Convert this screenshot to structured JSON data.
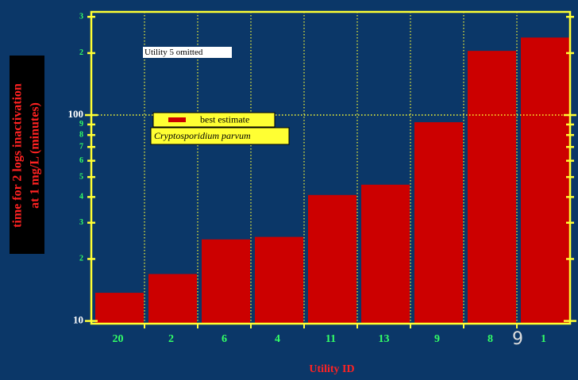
{
  "chart_data": {
    "type": "bar",
    "y_label": [
      "time for 2 logs inactivation",
      "at 1 mg/L (minutes)"
    ],
    "x_label": "Utility ID",
    "categories": [
      "20",
      "2",
      "6",
      "4",
      "11",
      "13",
      "9",
      "8",
      "1"
    ],
    "series": [
      {
        "name": "best estimate",
        "color": "#cc0000",
        "values": [
          13.7,
          16.9,
          24.9,
          25.6,
          40.9,
          45.9,
          92.3,
          205,
          238
        ]
      }
    ],
    "ylim": [
      9.7,
      317
    ],
    "log_y": true,
    "yticks": [
      10,
      {
        "value": 20,
        "label": "2"
      },
      {
        "value": 30,
        "label": "3"
      },
      {
        "value": 40,
        "label": "4"
      },
      {
        "value": 50,
        "label": "5"
      },
      {
        "value": 60,
        "label": "6"
      },
      {
        "value": 70,
        "label": "7"
      },
      {
        "value": 80,
        "label": "8"
      },
      {
        "value": 90,
        "label": "9"
      },
      100,
      {
        "value": 200,
        "label": "2"
      },
      {
        "value": 300,
        "label": "3"
      }
    ],
    "ygrid": [
      100
    ],
    "annotations": [
      "Utility 5 omitted",
      "Cryptosporidium parvum",
      "9"
    ]
  }
}
